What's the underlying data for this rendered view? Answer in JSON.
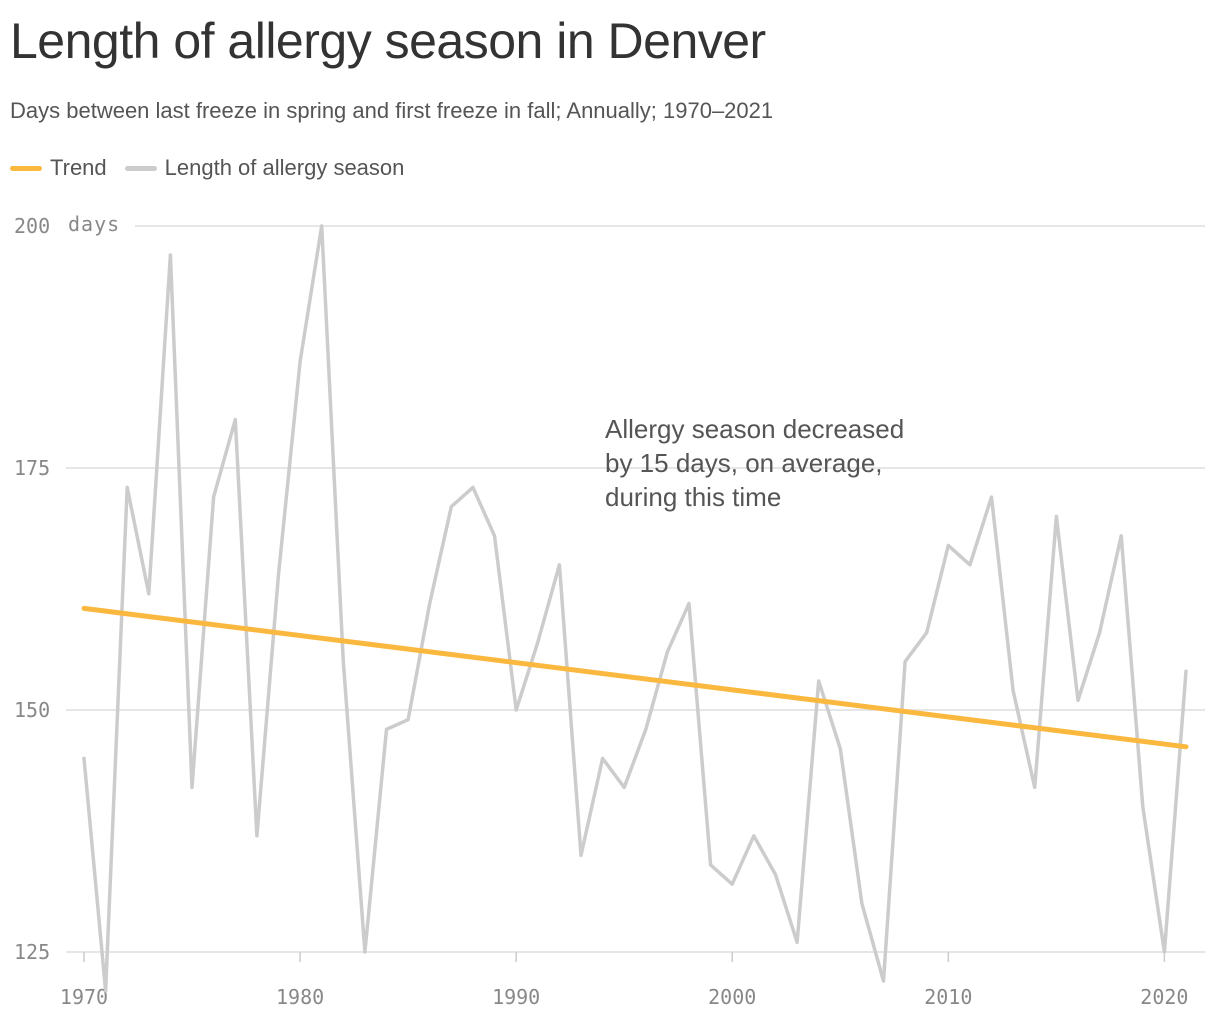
{
  "title": "Length of allergy season in Denver",
  "subtitle": "Days between last freeze in spring and first freeze in fall; Annually; 1970–2021",
  "legend": [
    {
      "label": "Trend",
      "color": "#fbb83f"
    },
    {
      "label": "Length of allergy season",
      "color": "#cccccc"
    }
  ],
  "annotation": {
    "lines": [
      "Allergy season decreased",
      "by 15 days, on average,",
      "during this time"
    ]
  },
  "chart_data": {
    "type": "line",
    "title": "Length of allergy season in Denver",
    "subtitle": "Days between last freeze in spring and first freeze in fall; Annually; 1970–2021",
    "ylabel_unit": "days",
    "ylim": [
      125,
      200
    ],
    "xlim": [
      1970,
      2021
    ],
    "y_ticks": [
      "125",
      "150",
      "175",
      "200"
    ],
    "x_ticks": [
      "1970",
      "1980",
      "1990",
      "2000",
      "2010",
      "2020"
    ],
    "grid": true,
    "legend_position": "top-left",
    "series": [
      {
        "name": "Length of allergy season",
        "color": "#cccccc",
        "x": [
          1970,
          1971,
          1972,
          1973,
          1974,
          1975,
          1976,
          1977,
          1978,
          1979,
          1980,
          1981,
          1982,
          1983,
          1984,
          1985,
          1986,
          1987,
          1988,
          1989,
          1990,
          1991,
          1992,
          1993,
          1994,
          1995,
          1996,
          1997,
          1998,
          1999,
          2000,
          2001,
          2002,
          2003,
          2004,
          2005,
          2006,
          2007,
          2008,
          2009,
          2010,
          2011,
          2012,
          2013,
          2014,
          2015,
          2016,
          2017,
          2018,
          2019,
          2020,
          2021
        ],
        "values": [
          145,
          121,
          173,
          162,
          197,
          142,
          172,
          180,
          137,
          164,
          186,
          200,
          155,
          125,
          148,
          149,
          161,
          171,
          173,
          168,
          150,
          157,
          165,
          135,
          145,
          142,
          148,
          156,
          161,
          134,
          132,
          137,
          133,
          126,
          153,
          146,
          130,
          122,
          155,
          158,
          167,
          165,
          172,
          152,
          142,
          170,
          151,
          158,
          168,
          140,
          125,
          154
        ]
      },
      {
        "name": "Trend",
        "color": "#fbb83f",
        "x": [
          1970,
          2021
        ],
        "values": [
          160.5,
          146.2
        ]
      }
    ],
    "annotations": [
      "Allergy season decreased by 15 days, on average, during this time"
    ]
  }
}
